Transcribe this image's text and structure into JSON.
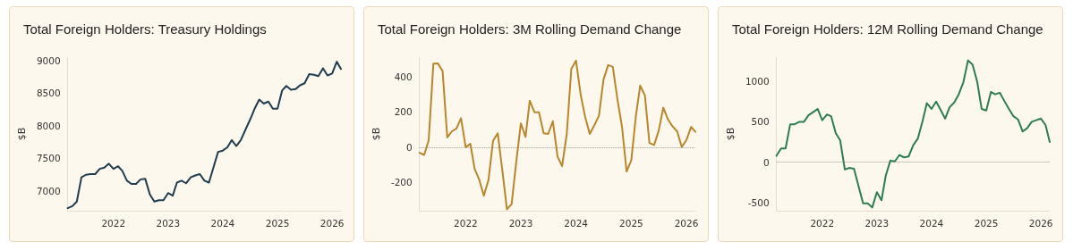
{
  "chart_data": [
    {
      "type": "line",
      "title": "Total Foreign Holders: Treasury Holdings",
      "ylabel": "$B",
      "x": [
        "2021-03",
        "2021-04",
        "2021-05",
        "2021-06",
        "2021-07",
        "2021-08",
        "2021-09",
        "2021-10",
        "2021-11",
        "2021-12",
        "2022-01",
        "2022-02",
        "2022-03",
        "2022-04",
        "2022-05",
        "2022-06",
        "2022-07",
        "2022-08",
        "2022-09",
        "2022-10",
        "2022-11",
        "2022-12",
        "2023-01",
        "2023-02",
        "2023-03",
        "2023-04",
        "2023-05",
        "2023-06",
        "2023-07",
        "2023-08",
        "2023-09",
        "2023-10",
        "2023-11",
        "2023-12",
        "2024-01",
        "2024-02",
        "2024-03",
        "2024-04",
        "2024-05",
        "2024-06",
        "2024-07",
        "2024-08",
        "2024-09",
        "2024-10",
        "2024-11",
        "2024-12",
        "2025-01",
        "2025-02",
        "2025-03",
        "2025-04",
        "2025-05",
        "2025-06",
        "2025-07",
        "2025-08",
        "2025-09",
        "2025-10",
        "2025-11",
        "2025-12",
        "2026-01",
        "2026-02",
        "2026-03"
      ],
      "series": [
        {
          "color": "#1f3d4f",
          "values": [
            6740,
            6770,
            6840,
            7210,
            7250,
            7260,
            7260,
            7340,
            7360,
            7420,
            7340,
            7380,
            7310,
            7160,
            7110,
            7110,
            7180,
            7190,
            6950,
            6840,
            6860,
            6860,
            6970,
            6930,
            7130,
            7160,
            7120,
            7210,
            7240,
            7260,
            7160,
            7130,
            7370,
            7600,
            7620,
            7670,
            7780,
            7690,
            7780,
            7940,
            8090,
            8260,
            8400,
            8340,
            8370,
            8260,
            8260,
            8540,
            8610,
            8550,
            8560,
            8620,
            8650,
            8790,
            8780,
            8760,
            8880,
            8770,
            8800,
            8980,
            8870
          ]
        }
      ],
      "xlim": [
        "2021-03",
        "2026-03"
      ],
      "xticks": [
        "2022",
        "2023",
        "2024",
        "2025",
        "2026"
      ],
      "ylim": [
        6700,
        9050
      ],
      "yticks": [
        7000,
        7500,
        8000,
        8500,
        9000
      ],
      "grid": false,
      "marker": "none",
      "line_style": "solid"
    },
    {
      "type": "line",
      "title": "Total Foreign Holders: 3M Rolling Demand Change",
      "ylabel": "$B",
      "x": [
        "2021-03",
        "2021-04",
        "2021-05",
        "2021-06",
        "2021-07",
        "2021-08",
        "2021-09",
        "2021-10",
        "2021-11",
        "2021-12",
        "2022-01",
        "2022-02",
        "2022-03",
        "2022-04",
        "2022-05",
        "2022-06",
        "2022-07",
        "2022-08",
        "2022-09",
        "2022-10",
        "2022-11",
        "2022-12",
        "2023-01",
        "2023-02",
        "2023-03",
        "2023-04",
        "2023-05",
        "2023-06",
        "2023-07",
        "2023-08",
        "2023-09",
        "2023-10",
        "2023-11",
        "2023-12",
        "2024-01",
        "2024-02",
        "2024-03",
        "2024-04",
        "2024-05",
        "2024-06",
        "2024-07",
        "2024-08",
        "2024-09",
        "2024-10",
        "2024-11",
        "2024-12",
        "2025-01",
        "2025-02",
        "2025-03",
        "2025-04",
        "2025-05",
        "2025-06",
        "2025-07",
        "2025-08",
        "2025-09",
        "2025-10",
        "2025-11",
        "2025-12",
        "2026-01",
        "2026-02",
        "2026-03"
      ],
      "series": [
        {
          "color": "#b8862b",
          "values": [
            -32,
            -44,
            38,
            473,
            475,
            431,
            55,
            89,
            106,
            164,
            0,
            19,
            -123,
            -185,
            -275,
            -185,
            36,
            79,
            -135,
            -352,
            -323,
            -87,
            135,
            58,
            263,
            198,
            198,
            79,
            75,
            147,
            -53,
            -108,
            75,
            443,
            490,
            297,
            174,
            75,
            123,
            178,
            383,
            465,
            455,
            272,
            113,
            -138,
            -75,
            181,
            349,
            294,
            24,
            12,
            92,
            224,
            157,
            118,
            89,
            0,
            41,
            115,
            87
          ]
        }
      ],
      "xlim": [
        "2021-03",
        "2026-03"
      ],
      "xticks": [
        "2022",
        "2023",
        "2024",
        "2025",
        "2026"
      ],
      "ylim": [
        -360,
        510
      ],
      "yticks": [
        -200,
        0,
        200,
        400
      ],
      "grid": false,
      "marker": "none",
      "line_style": "solid",
      "ref_lines": [
        {
          "axis": "y",
          "value": 0,
          "color": "#999999",
          "line_style": "dotted"
        }
      ]
    },
    {
      "type": "line",
      "title": "Total Foreign Holders: 12M Rolling Demand Change",
      "ylabel": "$B",
      "x": [
        "2021-03",
        "2021-04",
        "2021-05",
        "2021-06",
        "2021-07",
        "2021-08",
        "2021-09",
        "2021-10",
        "2021-11",
        "2021-12",
        "2022-01",
        "2022-02",
        "2022-03",
        "2022-04",
        "2022-05",
        "2022-06",
        "2022-07",
        "2022-08",
        "2022-09",
        "2022-10",
        "2022-11",
        "2022-12",
        "2023-01",
        "2023-02",
        "2023-03",
        "2023-04",
        "2023-05",
        "2023-06",
        "2023-07",
        "2023-08",
        "2023-09",
        "2023-10",
        "2023-11",
        "2023-12",
        "2024-01",
        "2024-02",
        "2024-03",
        "2024-04",
        "2024-05",
        "2024-06",
        "2024-07",
        "2024-08",
        "2024-09",
        "2024-10",
        "2024-11",
        "2024-12",
        "2025-01",
        "2025-02",
        "2025-03",
        "2025-04",
        "2025-05",
        "2025-06",
        "2025-07",
        "2025-08",
        "2025-09",
        "2025-10",
        "2025-11",
        "2025-12",
        "2026-01",
        "2026-02",
        "2026-03"
      ],
      "series": [
        {
          "color": "#2e7d4f",
          "values": [
            80,
            170,
            170,
            470,
            470,
            500,
            500,
            580,
            620,
            660,
            520,
            590,
            570,
            360,
            270,
            -90,
            -70,
            -80,
            -300,
            -510,
            -510,
            -560,
            -370,
            -470,
            -170,
            20,
            10,
            90,
            60,
            70,
            210,
            290,
            500,
            730,
            660,
            750,
            650,
            540,
            680,
            740,
            840,
            990,
            1260,
            1210,
            1000,
            660,
            640,
            870,
            840,
            860,
            760,
            660,
            570,
            530,
            380,
            420,
            500,
            520,
            540,
            460,
            250
          ]
        }
      ],
      "xlim": [
        "2021-03",
        "2026-03"
      ],
      "xticks": [
        "2022",
        "2023",
        "2024",
        "2025",
        "2026"
      ],
      "ylim": [
        -600,
        1300
      ],
      "yticks": [
        -500,
        0,
        500,
        1000
      ],
      "grid": false,
      "marker": "none",
      "line_style": "solid",
      "ref_lines": [
        {
          "axis": "y",
          "value": 0,
          "color": "#999999",
          "line_style": "dotted"
        }
      ]
    }
  ]
}
